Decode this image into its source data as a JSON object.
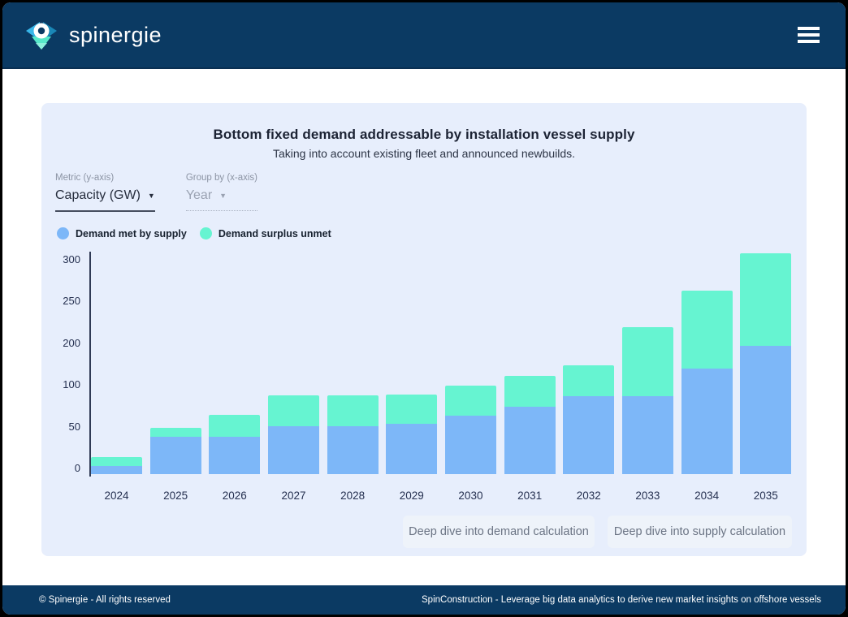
{
  "header": {
    "brand": "spinergie"
  },
  "icons": {
    "dropdown_caret": "▼"
  },
  "controls": {
    "metric_label": "Metric (y-axis)",
    "metric_value": "Capacity (GW)",
    "groupby_label": "Group by (x-axis)",
    "groupby_value": "Year"
  },
  "buttons": {
    "demand": "Deep dive into demand calculation",
    "supply": "Deep dive into supply calculation"
  },
  "chart_data": {
    "type": "bar",
    "stacked": true,
    "title": "Bottom fixed demand addressable by installation vessel supply",
    "subtitle": "Taking into account existing fleet and announced newbuilds.",
    "categories": [
      "2024",
      "2025",
      "2026",
      "2027",
      "2028",
      "2029",
      "2030",
      "2031",
      "2032",
      "2033",
      "2034",
      "2035"
    ],
    "series": [
      {
        "name": "Demand met by supply",
        "color": "#7db7f8",
        "values": [
          10,
          45,
          45,
          57,
          57,
          60,
          70,
          81,
          93,
          93,
          126,
          154
        ]
      },
      {
        "name": "Demand surplus unmet",
        "color": "#66f4d1",
        "values": [
          10,
          10,
          26,
          37,
          37,
          35,
          36,
          37,
          37,
          83,
          94,
          111
        ]
      }
    ],
    "ylabel": "Capacity (GW)",
    "xlabel": "Year",
    "ylim": [
      0,
      300
    ],
    "y_tick_labels_bottom_to_top": [
      "0",
      "50",
      "100",
      "200",
      "250",
      "300"
    ],
    "grid": false,
    "legend_position": "top-left"
  },
  "footer": {
    "left": "© Spinergie - All rights reserved",
    "right": "SpinConstruction - Leverage big data analytics to derive new market insights on offshore vessels"
  },
  "colors": {
    "header_navy": "#0b3a63",
    "card_background": "#e7eefc",
    "met_blue": "#7db7f8",
    "unmet_teal": "#66f4d1"
  }
}
